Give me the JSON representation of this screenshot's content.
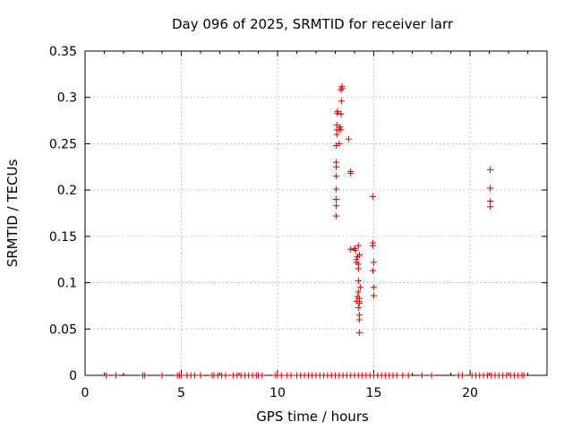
{
  "chart_data": {
    "type": "scatter",
    "title": "Day 096 of 2025, SRMTID for receiver larr",
    "xlabel": "GPS time / hours",
    "ylabel": "SRMTID / TECUs",
    "xlim": [
      0,
      24
    ],
    "ylim": [
      0,
      0.35
    ],
    "xticks": [
      0,
      5,
      10,
      15,
      20
    ],
    "xtick_labels": [
      "0",
      "5",
      "10",
      "15",
      "20"
    ],
    "yticks": [
      0,
      0.05,
      0.1,
      0.15,
      0.2,
      0.25,
      0.3,
      0.35
    ],
    "ytick_labels": [
      "0",
      "0.05",
      "0.1",
      "0.15",
      "0.2",
      "0.25",
      "0.3",
      "0.35"
    ],
    "grid": true,
    "marker": "+",
    "color": "#cc0000",
    "series": [
      {
        "points": [
          [
            13.05,
            0.172
          ],
          [
            13.05,
            0.183
          ],
          [
            13.05,
            0.19
          ],
          [
            13.05,
            0.201
          ],
          [
            13.05,
            0.215
          ],
          [
            13.05,
            0.225
          ],
          [
            13.05,
            0.23
          ],
          [
            13.05,
            0.248
          ],
          [
            13.08,
            0.26
          ],
          [
            13.08,
            0.265
          ],
          [
            13.08,
            0.27
          ],
          [
            13.1,
            0.283
          ],
          [
            13.12,
            0.285
          ],
          [
            13.2,
            0.25
          ],
          [
            13.2,
            0.265
          ],
          [
            13.25,
            0.268
          ],
          [
            13.3,
            0.265
          ],
          [
            13.3,
            0.282
          ],
          [
            13.32,
            0.296
          ],
          [
            13.3,
            0.308
          ],
          [
            13.35,
            0.31
          ],
          [
            13.35,
            0.312
          ],
          [
            13.7,
            0.255
          ],
          [
            13.8,
            0.218
          ],
          [
            13.8,
            0.22
          ],
          [
            13.8,
            0.136
          ],
          [
            14.0,
            0.137
          ],
          [
            14.05,
            0.135
          ],
          [
            14.1,
            0.122
          ],
          [
            14.1,
            0.125
          ],
          [
            14.15,
            0.128
          ],
          [
            14.2,
            0.14
          ],
          [
            14.2,
            0.12
          ],
          [
            14.25,
            0.13
          ],
          [
            14.2,
            0.115
          ],
          [
            14.2,
            0.102
          ],
          [
            14.2,
            0.09
          ],
          [
            14.15,
            0.085
          ],
          [
            14.1,
            0.08
          ],
          [
            14.25,
            0.078
          ],
          [
            14.2,
            0.073
          ],
          [
            14.3,
            0.095
          ],
          [
            14.25,
            0.08
          ],
          [
            14.25,
            0.065
          ],
          [
            14.25,
            0.06
          ],
          [
            14.25,
            0.046
          ],
          [
            14.25,
            0.083
          ],
          [
            14.95,
            0.193
          ],
          [
            14.95,
            0.143
          ],
          [
            14.95,
            0.14
          ],
          [
            15.0,
            0.122
          ],
          [
            14.95,
            0.113
          ],
          [
            15.0,
            0.095
          ],
          [
            15.0,
            0.086
          ],
          [
            21.05,
            0.222
          ],
          [
            21.05,
            0.202
          ],
          [
            21.05,
            0.188
          ],
          [
            21.05,
            0.182
          ],
          [
            1.1,
            0
          ],
          [
            1.6,
            0
          ],
          [
            3.0,
            0
          ],
          [
            3.1,
            0
          ],
          [
            4.0,
            0
          ],
          [
            4.8,
            0
          ],
          [
            4.9,
            0
          ],
          [
            5.0,
            0
          ],
          [
            5.3,
            0
          ],
          [
            5.5,
            0
          ],
          [
            5.7,
            0
          ],
          [
            6.0,
            0
          ],
          [
            6.6,
            0
          ],
          [
            6.7,
            0
          ],
          [
            6.9,
            0
          ],
          [
            7.1,
            0
          ],
          [
            7.3,
            0
          ],
          [
            7.7,
            0
          ],
          [
            7.9,
            0
          ],
          [
            8.1,
            0
          ],
          [
            8.3,
            0
          ],
          [
            8.5,
            0
          ],
          [
            8.7,
            0
          ],
          [
            8.9,
            0
          ],
          [
            9.0,
            0
          ],
          [
            9.2,
            0
          ],
          [
            9.9,
            0
          ],
          [
            10.0,
            0
          ],
          [
            10.2,
            0
          ],
          [
            10.5,
            0
          ],
          [
            10.7,
            0
          ],
          [
            11.0,
            0
          ],
          [
            11.2,
            0
          ],
          [
            11.4,
            0
          ],
          [
            11.6,
            0
          ],
          [
            11.8,
            0
          ],
          [
            12.0,
            0
          ],
          [
            12.2,
            0
          ],
          [
            12.4,
            0
          ],
          [
            12.6,
            0
          ],
          [
            12.8,
            0
          ],
          [
            13.0,
            0
          ],
          [
            13.2,
            0
          ],
          [
            13.4,
            0
          ],
          [
            13.6,
            0
          ],
          [
            13.8,
            0
          ],
          [
            14.0,
            0
          ],
          [
            14.2,
            0
          ],
          [
            14.4,
            0
          ],
          [
            14.6,
            0
          ],
          [
            14.8,
            0
          ],
          [
            15.0,
            0
          ],
          [
            15.2,
            0
          ],
          [
            15.4,
            0
          ],
          [
            15.6,
            0
          ],
          [
            15.8,
            0
          ],
          [
            16.0,
            0
          ],
          [
            16.2,
            0
          ],
          [
            16.5,
            0
          ],
          [
            16.8,
            0
          ],
          [
            17.5,
            0
          ],
          [
            18.0,
            0
          ],
          [
            19.4,
            0
          ],
          [
            19.6,
            0
          ],
          [
            20.1,
            0
          ],
          [
            20.3,
            0
          ],
          [
            20.5,
            0
          ],
          [
            20.7,
            0
          ],
          [
            20.9,
            0
          ],
          [
            21.1,
            0
          ],
          [
            21.3,
            0
          ],
          [
            21.5,
            0
          ],
          [
            21.7,
            0
          ],
          [
            21.9,
            0
          ],
          [
            22.1,
            0
          ],
          [
            22.3,
            0
          ],
          [
            22.5,
            0
          ],
          [
            22.7,
            0
          ],
          [
            22.8,
            0
          ]
        ]
      }
    ]
  }
}
